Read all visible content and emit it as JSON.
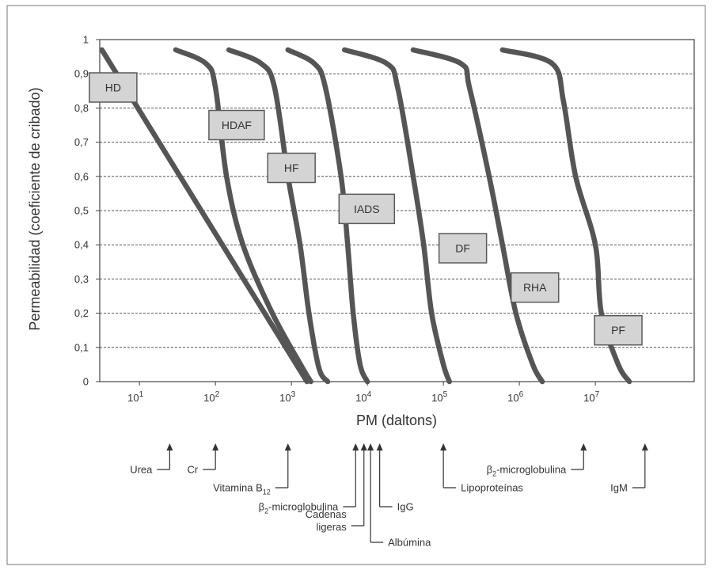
{
  "chart_data": {
    "type": "line",
    "title": "",
    "xlabel": "PM (daltons)",
    "ylabel": "Permeabilidad (coeficiente de cribado)",
    "x_scale": "log",
    "xlim": [
      3,
      200000000
    ],
    "ylim": [
      0,
      1
    ],
    "grid": "horizontal dashed",
    "y_ticks": [
      "0",
      "0,1",
      "0,2",
      "0,3",
      "0,4",
      "0,5",
      "0,6",
      "0,7",
      "0,8",
      "0,9",
      "1"
    ],
    "x_ticks": [
      {
        "value": 10,
        "base": "10",
        "exp": "1"
      },
      {
        "value": 100,
        "base": "10",
        "exp": "2"
      },
      {
        "value": 1000,
        "base": "10",
        "exp": "3"
      },
      {
        "value": 10000,
        "base": "10",
        "exp": "4"
      },
      {
        "value": 100000,
        "base": "10",
        "exp": "5"
      },
      {
        "value": 1000000,
        "base": "10",
        "exp": "6"
      },
      {
        "value": 10000000,
        "base": "10",
        "exp": "7"
      }
    ],
    "series": [
      {
        "name": "HD",
        "label_pos": [
          4.5,
          0.86
        ],
        "points": [
          [
            3.2,
            0.97
          ],
          [
            1600,
            0
          ]
        ]
      },
      {
        "name": "HDAF",
        "label_pos": [
          190,
          0.75
        ],
        "points": [
          [
            30,
            0.97
          ],
          [
            75,
            0.93
          ],
          [
            100,
            0.86
          ],
          [
            140,
            0.6
          ],
          [
            230,
            0.4
          ],
          [
            560,
            0.2
          ],
          [
            1400,
            0.04
          ],
          [
            1800,
            0
          ]
        ]
      },
      {
        "name": "HF",
        "label_pos": [
          1000,
          0.625
        ],
        "points": [
          [
            150,
            0.97
          ],
          [
            400,
            0.93
          ],
          [
            600,
            0.86
          ],
          [
            900,
            0.6
          ],
          [
            1300,
            0.4
          ],
          [
            1700,
            0.2
          ],
          [
            2300,
            0.04
          ],
          [
            3000,
            0
          ]
        ]
      },
      {
        "name": "IADS",
        "label_pos": [
          9800,
          0.505
        ],
        "points": [
          [
            900,
            0.97
          ],
          [
            2000,
            0.93
          ],
          [
            2800,
            0.86
          ],
          [
            4500,
            0.6
          ],
          [
            5500,
            0.4
          ],
          [
            6500,
            0.2
          ],
          [
            8000,
            0.05
          ],
          [
            10000,
            0
          ]
        ]
      },
      {
        "name": "DF",
        "label_pos": [
          180000,
          0.39
        ],
        "points": [
          [
            5000,
            0.97
          ],
          [
            18000,
            0.93
          ],
          [
            25000,
            0.86
          ],
          [
            40000,
            0.6
          ],
          [
            55000,
            0.4
          ],
          [
            70000,
            0.2
          ],
          [
            100000,
            0.05
          ],
          [
            120000,
            0
          ]
        ]
      },
      {
        "name": "RHA",
        "label_pos": [
          1600000,
          0.275
        ],
        "points": [
          [
            40000,
            0.97
          ],
          [
            170000,
            0.93
          ],
          [
            220000,
            0.86
          ],
          [
            400000,
            0.6
          ],
          [
            600000,
            0.4
          ],
          [
            900000,
            0.2
          ],
          [
            1500000,
            0.05
          ],
          [
            2000000,
            0
          ]
        ]
      },
      {
        "name": "PF",
        "label_pos": [
          20000000,
          0.15
        ],
        "points": [
          [
            600000,
            0.97
          ],
          [
            2700000,
            0.93
          ],
          [
            3800000,
            0.82
          ],
          [
            5500000,
            0.6
          ],
          [
            10000000,
            0.4
          ],
          [
            12000000,
            0.2
          ],
          [
            20000000,
            0.05
          ],
          [
            28000000,
            0
          ]
        ]
      }
    ],
    "molecules": [
      {
        "x": 25,
        "text": "Urea",
        "connector": "left",
        "label_row": 0
      },
      {
        "x": 100,
        "text": "Cr",
        "connector": "left",
        "label_row": 0
      },
      {
        "x": 900,
        "text": "Vitamina B",
        "sub": "12",
        "connector": "left",
        "label_row": 1
      },
      {
        "x": 7000,
        "text": "β",
        "sub": "2",
        "suffix": "-microglobulina",
        "connector": "left",
        "label_row": 2
      },
      {
        "x": 9000,
        "lines": [
          "Cadenas",
          "ligeras"
        ],
        "connector": "left",
        "label_row": 3
      },
      {
        "x": 11000,
        "text": "Albúmina",
        "connector": "right",
        "label_row": 4
      },
      {
        "x": 14500,
        "text": "IgG",
        "connector": "right",
        "label_row": 2
      },
      {
        "x": 100000,
        "text": "Lipoproteínas",
        "connector": "right",
        "label_row": 1
      },
      {
        "x": 7000000,
        "text": "β",
        "sub": "2",
        "suffix": "-microglobulina",
        "connector": "left",
        "label_row": 0
      },
      {
        "x": 45000000,
        "text": "IgM",
        "connector": "left",
        "label_row": 1
      }
    ]
  }
}
